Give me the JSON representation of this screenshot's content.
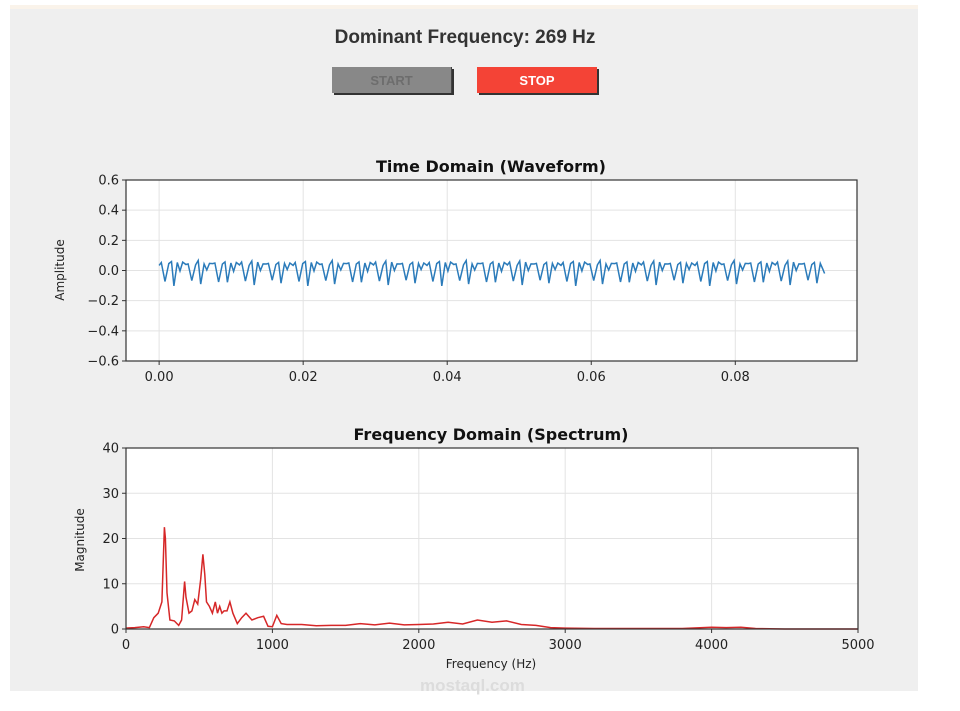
{
  "app": {
    "dominant_frequency_label": "Dominant Frequency: 269 Hz",
    "dominant_frequency_value": 269,
    "dominant_frequency_unit": "Hz"
  },
  "buttons": {
    "start": {
      "label": "START",
      "enabled": false,
      "color": "#888888"
    },
    "stop": {
      "label": "STOP",
      "enabled": true,
      "color": "#f44336"
    }
  },
  "watermark": "mostaql.com",
  "chart_data": [
    {
      "type": "line",
      "title": "Time Domain (Waveform)",
      "xlabel": "",
      "ylabel": "Amplitude",
      "xlim": [
        -0.0046,
        0.0969
      ],
      "ylim": [
        -0.6,
        0.6
      ],
      "xticks": [
        0.0,
        0.02,
        0.04,
        0.06,
        0.08
      ],
      "xtick_labels": [
        "0.00",
        "0.02",
        "0.04",
        "0.06",
        "0.08"
      ],
      "yticks": [
        0.6,
        0.4,
        0.2,
        0.0,
        -0.2,
        -0.4,
        -0.6
      ],
      "ytick_labels": [
        "0.6",
        "0.4",
        "0.2",
        "0.0",
        "−0.2",
        "−0.4",
        "−0.6"
      ],
      "grid": true,
      "color": "#2b7bba",
      "series": [
        {
          "name": "waveform",
          "period_s": 0.00372,
          "duration_s": 0.0924,
          "period_shape": [
            [
              0.0,
              0.04
            ],
            [
              0.08,
              0.05
            ],
            [
              0.22,
              -0.07
            ],
            [
              0.36,
              0.04
            ],
            [
              0.46,
              0.06
            ],
            [
              0.55,
              -0.08
            ],
            [
              0.68,
              0.05
            ],
            [
              0.78,
              0.0
            ],
            [
              0.88,
              0.05
            ],
            [
              1.0,
              0.04
            ]
          ],
          "amplitude_range": [
            -0.1,
            0.07
          ]
        }
      ]
    },
    {
      "type": "line",
      "title": "Frequency Domain (Spectrum)",
      "xlabel": "Frequency (Hz)",
      "ylabel": "Magnitude",
      "xlim": [
        0,
        5000
      ],
      "ylim": [
        0,
        40
      ],
      "xticks": [
        0,
        1000,
        2000,
        3000,
        4000,
        5000
      ],
      "xtick_labels": [
        "0",
        "1000",
        "2000",
        "3000",
        "4000",
        "5000"
      ],
      "yticks": [
        0,
        10,
        20,
        30,
        40
      ],
      "ytick_labels": [
        "0",
        "10",
        "20",
        "30",
        "40"
      ],
      "grid": true,
      "color": "#d62728",
      "series": [
        {
          "name": "spectrum",
          "x": [
            0,
            60,
            120,
            160,
            190,
            220,
            245,
            262,
            269,
            280,
            300,
            330,
            360,
            380,
            400,
            410,
            430,
            450,
            470,
            490,
            510,
            525,
            538,
            550,
            570,
            590,
            610,
            625,
            640,
            655,
            670,
            690,
            710,
            730,
            760,
            790,
            820,
            860,
            900,
            940,
            970,
            1000,
            1030,
            1060,
            1100,
            1200,
            1300,
            1400,
            1500,
            1600,
            1700,
            1800,
            1900,
            2000,
            2100,
            2200,
            2300,
            2400,
            2500,
            2600,
            2700,
            2800,
            2900,
            3000,
            3200,
            3400,
            3600,
            3800,
            4000,
            4100,
            4200,
            4300,
            4500,
            5000
          ],
          "y": [
            0.2,
            0.3,
            0.5,
            0.3,
            2.5,
            3.5,
            6,
            22.5,
            20,
            8,
            2,
            1.8,
            0.8,
            2,
            10.5,
            7,
            3.5,
            4,
            6.5,
            5.5,
            11,
            16.5,
            12,
            6,
            5,
            3.5,
            6,
            3.5,
            5,
            3.5,
            4,
            4,
            6,
            3.5,
            1.2,
            2.5,
            3.5,
            2,
            2.5,
            2.8,
            0.6,
            0.5,
            3,
            1.2,
            1.0,
            1.0,
            0.7,
            0.8,
            0.8,
            1.2,
            0.9,
            1.3,
            0.9,
            1.0,
            1.1,
            1.5,
            1.1,
            2.0,
            1.5,
            1.8,
            1.0,
            0.8,
            0.3,
            0.2,
            0.1,
            0.1,
            0.1,
            0.1,
            0.4,
            0.3,
            0.4,
            0.1,
            0.0,
            0.0
          ]
        }
      ]
    }
  ]
}
